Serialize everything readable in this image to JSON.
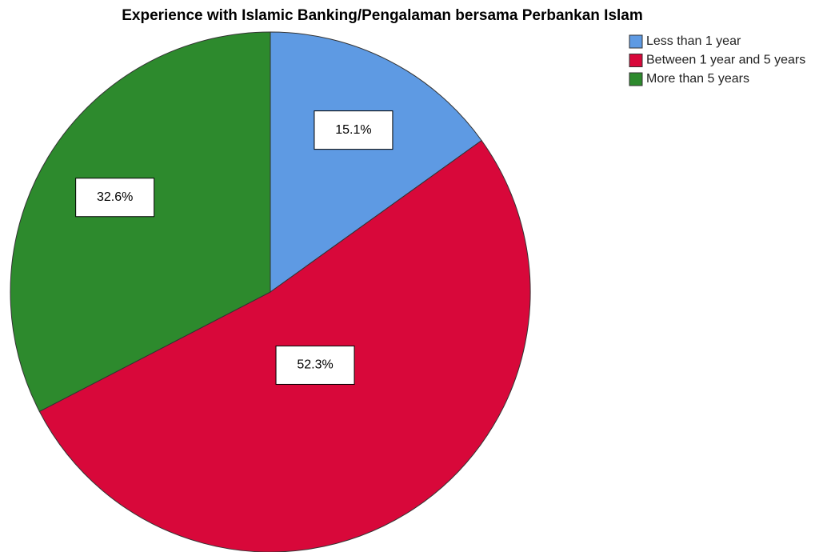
{
  "chart_data": {
    "type": "pie",
    "title": "Experience with Islamic Banking/Pengalaman bersama Perbankan Islam",
    "categories": [
      "Less than 1 year",
      "Between 1 year and 5 years",
      "More than 5 years"
    ],
    "values": [
      15.1,
      52.3,
      32.6
    ],
    "value_labels": [
      "15.1%",
      "52.3%",
      "32.6%"
    ],
    "colors": [
      "#5e9ae3",
      "#d8083a",
      "#2d8a2d"
    ],
    "legend": "top-right"
  }
}
